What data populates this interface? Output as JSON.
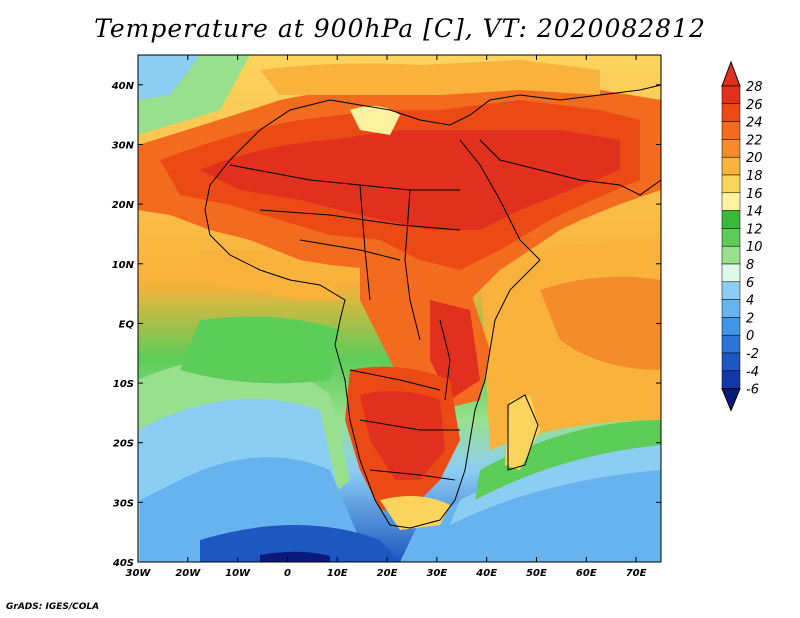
{
  "title": "Temperature at 900hPa [C], VT: 2020082812",
  "footer": "GrADS: IGES/COLA",
  "map": {
    "lon_range": [
      -30,
      75
    ],
    "lat_range": [
      -40,
      45
    ],
    "lon_ticks": [
      "30W",
      "20W",
      "10W",
      "0",
      "10E",
      "20E",
      "30E",
      "40E",
      "50E",
      "60E",
      "70E"
    ],
    "lat_ticks": [
      "40N",
      "30N",
      "20N",
      "10N",
      "EQ",
      "10S",
      "20S",
      "30S",
      "40S"
    ]
  },
  "colorbar": {
    "labels": [
      "28",
      "26",
      "24",
      "22",
      "20",
      "18",
      "16",
      "14",
      "12",
      "10",
      "8",
      "6",
      "4",
      "2",
      "0",
      "-2",
      "-4",
      "-6"
    ],
    "colors": [
      "#e2301e",
      "#ec4a14",
      "#f26b1f",
      "#f58c2b",
      "#f9b23b",
      "#fbd45e",
      "#fdf2a0",
      "#39b83b",
      "#5ccd58",
      "#98e08d",
      "#def9e8",
      "#8ccdf4",
      "#66b3ef",
      "#3f97e6",
      "#2a75d6",
      "#1d57c0",
      "#1238a8",
      "#0a1a7a"
    ]
  }
}
